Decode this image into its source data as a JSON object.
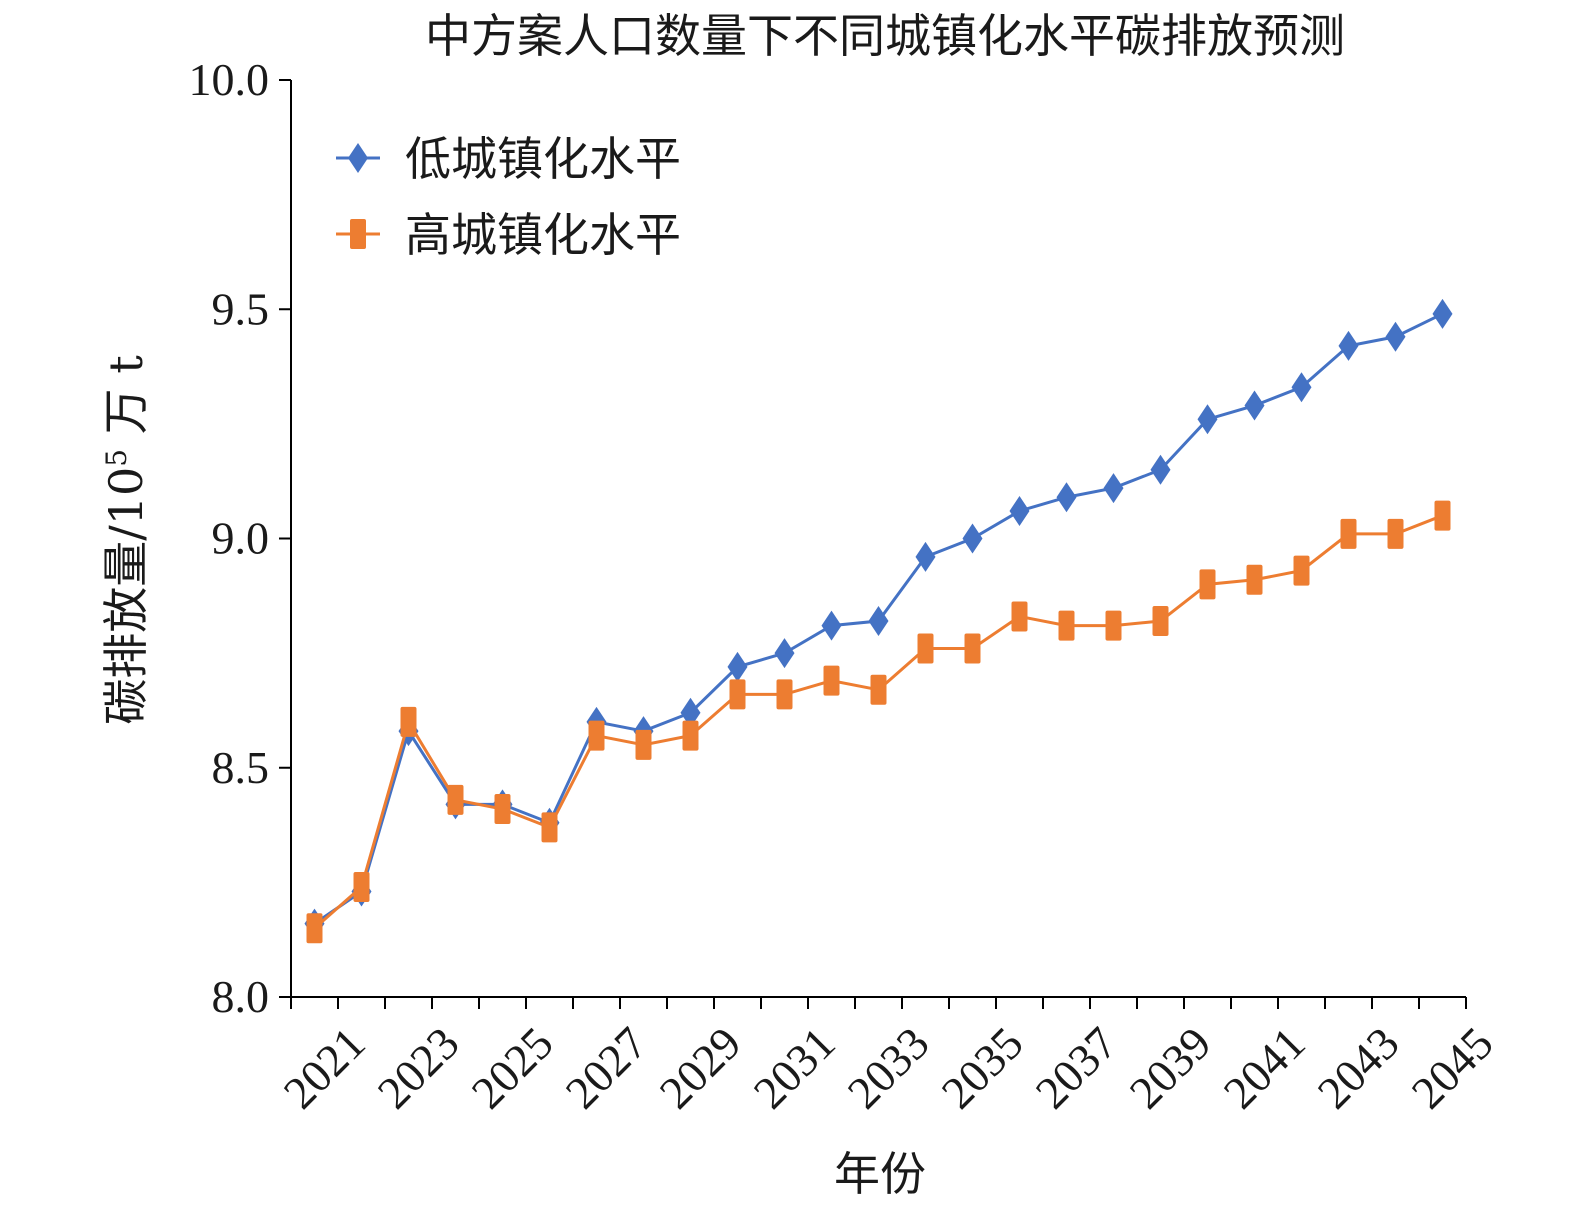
{
  "chart_data": {
    "type": "line",
    "title": "中方案人口数量下不同城镇化水平碳排放预测",
    "xlabel": "年份",
    "ylabel": "碳排放量/10⁵ 万 t",
    "ylabel_parts": {
      "prefix": "碳排放量/10",
      "sup": "5",
      "suffix": " 万 t"
    },
    "ylim": [
      8.0,
      10.0
    ],
    "yticks": [
      "8.0",
      "8.5",
      "9.0",
      "9.5",
      "10.0"
    ],
    "x": [
      2021,
      2022,
      2023,
      2024,
      2025,
      2026,
      2027,
      2028,
      2029,
      2030,
      2031,
      2032,
      2033,
      2034,
      2035,
      2036,
      2037,
      2038,
      2039,
      2040,
      2041,
      2042,
      2043,
      2044,
      2045
    ],
    "xtick_labels": [
      "2021",
      "2023",
      "2025",
      "2027",
      "2029",
      "2031",
      "2033",
      "2035",
      "2037",
      "2039",
      "2041",
      "2043",
      "2045"
    ],
    "legend_position": "top-left",
    "grid": false,
    "series": [
      {
        "name": "低城镇化水平",
        "color": "#4472C4",
        "marker": "diamond",
        "values": [
          8.16,
          8.23,
          8.58,
          8.42,
          8.42,
          8.38,
          8.6,
          8.58,
          8.62,
          8.72,
          8.75,
          8.81,
          8.82,
          8.96,
          9.0,
          9.06,
          9.09,
          9.11,
          9.15,
          9.26,
          9.29,
          9.33,
          9.42,
          9.44,
          9.49
        ]
      },
      {
        "name": "高城镇化水平",
        "color": "#ED7D31",
        "marker": "square",
        "values": [
          8.15,
          8.24,
          8.6,
          8.43,
          8.41,
          8.37,
          8.57,
          8.55,
          8.57,
          8.66,
          8.66,
          8.69,
          8.67,
          8.76,
          8.76,
          8.83,
          8.81,
          8.81,
          8.82,
          8.9,
          8.91,
          8.93,
          9.01,
          9.01,
          9.05
        ]
      }
    ]
  }
}
